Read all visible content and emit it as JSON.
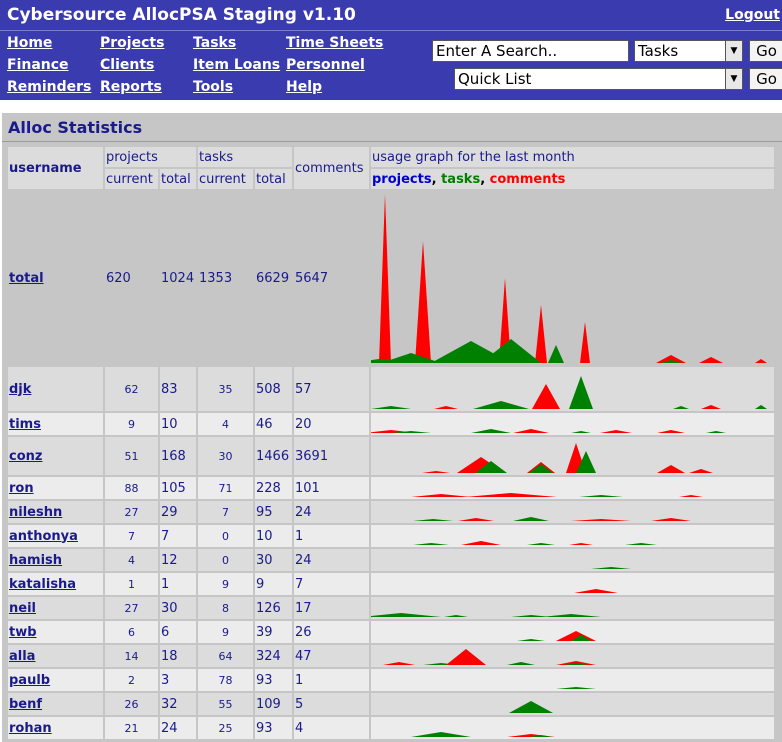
{
  "header": {
    "title": "Cybersource AllocPSA Staging v1.10",
    "logout": "Logout",
    "nav": [
      [
        "Home",
        "Projects",
        "Tasks",
        "Time Sheets"
      ],
      [
        "Finance",
        "Clients",
        "Item Loans",
        "Personnel"
      ],
      [
        "Reminders",
        "Reports",
        "Tools",
        "Help"
      ]
    ],
    "search": {
      "value": "Enter A Search..",
      "scope": "Tasks",
      "go": "Go"
    },
    "quicklist": {
      "value": "Quick List",
      "go": "Go"
    }
  },
  "panel": {
    "title": "Alloc Statistics",
    "headers": {
      "username": "username",
      "projects": "projects",
      "tasks": "tasks",
      "current": "current",
      "total": "total",
      "comments": "comments",
      "graph": "usage graph for the last month",
      "legend_projects": "projects",
      "legend_tasks": "tasks",
      "legend_comments": "comments",
      "sep1": ",",
      "sep2": ","
    },
    "colors": {
      "projects": "#0000cc",
      "tasks": "#008000",
      "comments": "#ff0000"
    },
    "rows": [
      {
        "user": "total",
        "proj_cur": "620",
        "proj_tot": "1024",
        "task_cur": "1353",
        "task_tot": "6629",
        "comments": "5647"
      },
      {
        "user": "djk",
        "proj_cur": "62",
        "proj_tot": "83",
        "task_cur": "35",
        "task_tot": "508",
        "comments": "57"
      },
      {
        "user": "tims",
        "proj_cur": "9",
        "proj_tot": "10",
        "task_cur": "4",
        "task_tot": "46",
        "comments": "20"
      },
      {
        "user": "conz",
        "proj_cur": "51",
        "proj_tot": "168",
        "task_cur": "30",
        "task_tot": "1466",
        "comments": "3691"
      },
      {
        "user": "ron",
        "proj_cur": "88",
        "proj_tot": "105",
        "task_cur": "71",
        "task_tot": "228",
        "comments": "101"
      },
      {
        "user": "nileshn",
        "proj_cur": "27",
        "proj_tot": "29",
        "task_cur": "7",
        "task_tot": "95",
        "comments": "24"
      },
      {
        "user": "anthonya",
        "proj_cur": "7",
        "proj_tot": "7",
        "task_cur": "0",
        "task_tot": "10",
        "comments": "1"
      },
      {
        "user": "hamish",
        "proj_cur": "4",
        "proj_tot": "12",
        "task_cur": "0",
        "task_tot": "30",
        "comments": "24"
      },
      {
        "user": "katalisha",
        "proj_cur": "1",
        "proj_tot": "1",
        "task_cur": "9",
        "task_tot": "9",
        "comments": "7"
      },
      {
        "user": "neil",
        "proj_cur": "27",
        "proj_tot": "30",
        "task_cur": "8",
        "task_tot": "126",
        "comments": "17"
      },
      {
        "user": "twb",
        "proj_cur": "6",
        "proj_tot": "6",
        "task_cur": "9",
        "task_tot": "39",
        "comments": "26"
      },
      {
        "user": "alla",
        "proj_cur": "14",
        "proj_tot": "18",
        "task_cur": "64",
        "task_tot": "324",
        "comments": "47"
      },
      {
        "user": "paulb",
        "proj_cur": "2",
        "proj_tot": "3",
        "task_cur": "78",
        "task_tot": "93",
        "comments": "1"
      },
      {
        "user": "benf",
        "proj_cur": "26",
        "proj_tot": "32",
        "task_cur": "55",
        "task_tot": "109",
        "comments": "5"
      },
      {
        "user": "rohan",
        "proj_cur": "21",
        "proj_tot": "24",
        "task_cur": "25",
        "task_tot": "93",
        "comments": "4"
      }
    ]
  }
}
